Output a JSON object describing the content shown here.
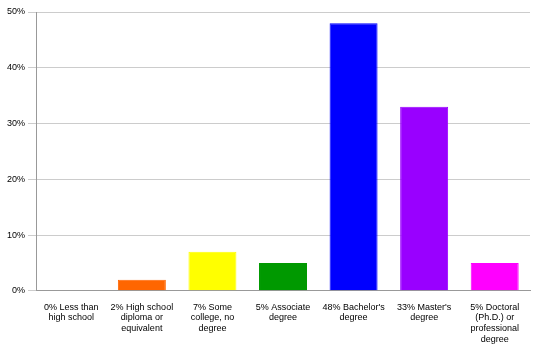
{
  "chart_data": {
    "type": "bar",
    "categories": [
      "0% Less than high school",
      "2% High school diploma or equivalent",
      "7% Some college, no degree",
      "5% Associate degree",
      "48% Bachelor's degree",
      "33% Master's degree",
      "5% Doctoral (Ph.D.) or professional degree"
    ],
    "values": [
      0,
      2,
      7,
      5,
      48,
      33,
      5
    ],
    "colors": [
      "#ff0000",
      "#ff6600",
      "#ffff00",
      "#009900",
      "#0000ff",
      "#9900ff",
      "#ff00ff"
    ],
    "ylim": [
      0,
      50
    ],
    "yticks": [
      {
        "value": 0,
        "label": "0%"
      },
      {
        "value": 10,
        "label": "10%"
      },
      {
        "value": 20,
        "label": "20%"
      },
      {
        "value": 30,
        "label": "30%"
      },
      {
        "value": 40,
        "label": "40%"
      },
      {
        "value": 50,
        "label": "50%"
      }
    ],
    "grid": true
  }
}
